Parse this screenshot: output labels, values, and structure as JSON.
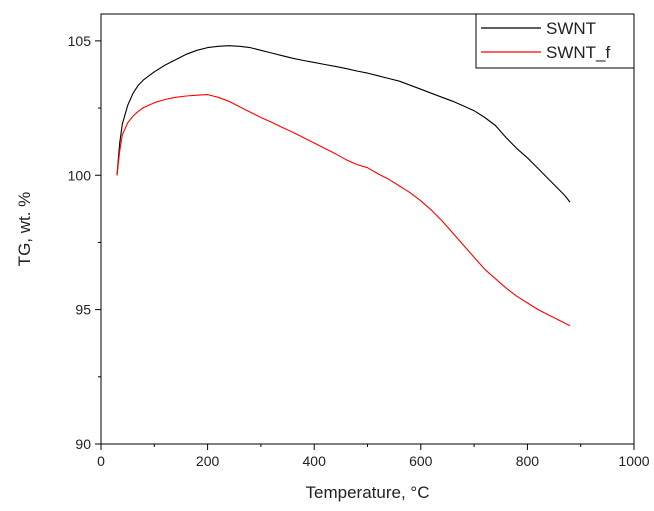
{
  "chart_data": {
    "type": "line",
    "title": "",
    "xlabel": "Temperature, °C",
    "ylabel": "TG, wt. %",
    "xlim": [
      0,
      1000
    ],
    "ylim": [
      90,
      106
    ],
    "x_ticks": [
      0,
      200,
      400,
      600,
      800,
      1000
    ],
    "y_ticks": [
      90,
      95,
      100,
      105
    ],
    "x_tick_labels": [
      "0",
      "200",
      "400",
      "600",
      "800",
      "1000"
    ],
    "y_tick_labels": [
      "90",
      "95",
      "100",
      "105"
    ],
    "grid": false,
    "legend_position": "top-right",
    "series": [
      {
        "name": "SWNT",
        "color": "#000000",
        "x": [
          30,
          35,
          40,
          50,
          60,
          70,
          80,
          100,
          120,
          140,
          160,
          180,
          200,
          220,
          240,
          260,
          280,
          300,
          320,
          340,
          360,
          380,
          400,
          420,
          440,
          460,
          480,
          500,
          520,
          540,
          560,
          580,
          600,
          620,
          640,
          660,
          680,
          700,
          720,
          740,
          760,
          780,
          800,
          820,
          840,
          860,
          870,
          880
        ],
        "y": [
          100.0,
          101.2,
          101.9,
          102.6,
          103.05,
          103.35,
          103.55,
          103.85,
          104.1,
          104.3,
          104.5,
          104.65,
          104.75,
          104.8,
          104.82,
          104.8,
          104.75,
          104.65,
          104.55,
          104.45,
          104.35,
          104.27,
          104.2,
          104.12,
          104.05,
          103.97,
          103.88,
          103.8,
          103.7,
          103.6,
          103.5,
          103.35,
          103.2,
          103.05,
          102.9,
          102.75,
          102.58,
          102.4,
          102.15,
          101.85,
          101.4,
          101.0,
          100.65,
          100.25,
          99.85,
          99.45,
          99.25,
          99.0
        ]
      },
      {
        "name": "SWNT_f",
        "color": "#ff0000",
        "x": [
          30,
          35,
          40,
          50,
          60,
          70,
          80,
          100,
          120,
          140,
          160,
          180,
          200,
          220,
          240,
          260,
          280,
          300,
          320,
          340,
          360,
          380,
          400,
          420,
          440,
          460,
          480,
          500,
          520,
          540,
          560,
          580,
          600,
          620,
          640,
          660,
          680,
          700,
          720,
          740,
          760,
          780,
          800,
          820,
          840,
          860,
          870,
          880
        ],
        "y": [
          100.0,
          100.9,
          101.5,
          101.95,
          102.2,
          102.38,
          102.52,
          102.7,
          102.82,
          102.9,
          102.95,
          102.98,
          103.0,
          102.9,
          102.75,
          102.55,
          102.35,
          102.15,
          101.97,
          101.78,
          101.6,
          101.4,
          101.2,
          101.0,
          100.8,
          100.58,
          100.4,
          100.28,
          100.05,
          99.85,
          99.6,
          99.35,
          99.05,
          98.7,
          98.3,
          97.85,
          97.4,
          96.95,
          96.5,
          96.15,
          95.8,
          95.5,
          95.25,
          95.0,
          94.8,
          94.6,
          94.5,
          94.4
        ]
      }
    ]
  }
}
